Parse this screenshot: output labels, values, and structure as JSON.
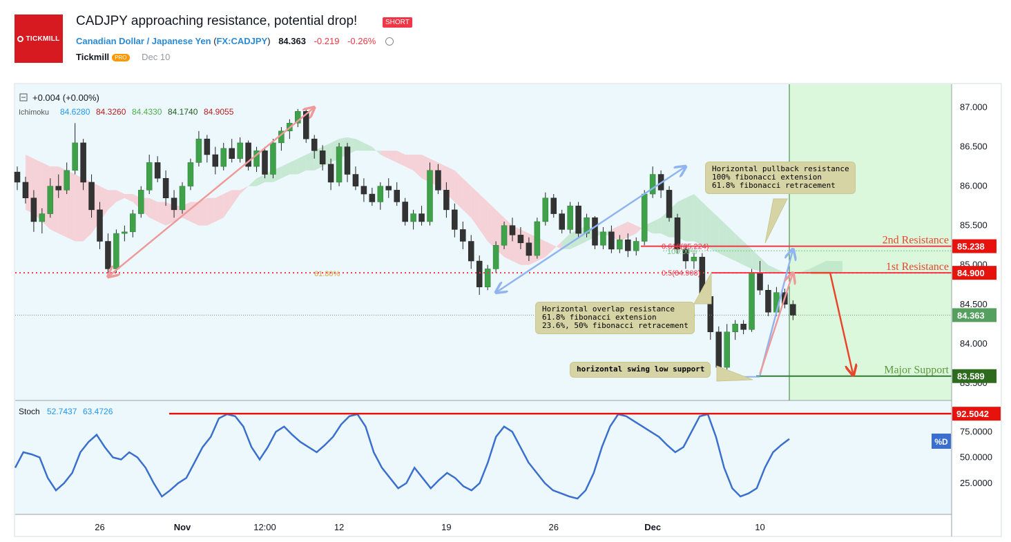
{
  "header": {
    "title": "CADJPY approaching resistance, potential drop!",
    "badge": "SHORT",
    "symbol_name": "Canadian Dollar / Japanese Yen",
    "symbol_code": "FX:CADJPY",
    "symbol_open": "(",
    "symbol_close": ")",
    "price": "84.363",
    "change": "-0.219",
    "change_pct": "-0.26%",
    "author": "Tickmill",
    "author_badge": "PRO",
    "date": "Dec 10",
    "logo_text": "TICKMILL"
  },
  "legend": {
    "collapse_icon": "minus-square-icon",
    "change_text": "+0.004 (+0.00%)",
    "ichimoku_label": "Ichimoku",
    "ichimoku_values": [
      {
        "value": "84.6280",
        "color": "#2196f3"
      },
      {
        "value": "84.3260",
        "color": "#b71c1c"
      },
      {
        "value": "84.4330",
        "color": "#4caf50"
      },
      {
        "value": "84.1740",
        "color": "#1b5e20"
      },
      {
        "value": "84.9055",
        "color": "#b71c1c"
      }
    ],
    "stoch_label": "Stoch",
    "stoch_values": [
      {
        "value": "52.7437",
        "color": "#2196f3"
      },
      {
        "value": "63.4726",
        "color": "#2196f3"
      }
    ]
  },
  "chart_data": [
    {
      "type": "candlestick",
      "title": "",
      "ylim": [
        83.35,
        87.18
      ],
      "y_ticks": [
        {
          "v": 83.5,
          "label": "83.500"
        },
        {
          "v": 84.0,
          "label": "84.000"
        },
        {
          "v": 84.5,
          "label": "84.500"
        },
        {
          "v": 85.0,
          "label": "85.000"
        },
        {
          "v": 85.5,
          "label": "85.500"
        },
        {
          "v": 86.0,
          "label": "86.000"
        },
        {
          "v": 86.5,
          "label": "86.500"
        },
        {
          "v": 87.0,
          "label": "87.000"
        }
      ],
      "x_ticks": [
        {
          "index": 10,
          "label": "26",
          "bold": false
        },
        {
          "index": 20,
          "label": "Nov",
          "bold": true
        },
        {
          "index": 30,
          "label": "12:00",
          "bold": false
        },
        {
          "index": 39,
          "label": "12",
          "bold": false
        },
        {
          "index": 52,
          "label": "19",
          "bold": false
        },
        {
          "index": 65,
          "label": "26",
          "bold": false
        },
        {
          "index": 77,
          "label": "Dec",
          "bold": true
        },
        {
          "index": 90,
          "label": "10",
          "bold": false
        }
      ],
      "ohlc": [
        [
          86.18,
          86.25,
          85.95,
          86.05
        ],
        [
          86.05,
          86.12,
          85.78,
          85.85
        ],
        [
          85.85,
          85.95,
          85.42,
          85.55
        ],
        [
          85.55,
          85.72,
          85.4,
          85.65
        ],
        [
          85.65,
          86.1,
          85.6,
          86.0
        ],
        [
          86.0,
          86.15,
          85.85,
          85.95
        ],
        [
          85.95,
          86.3,
          85.9,
          86.2
        ],
        [
          86.2,
          86.8,
          86.15,
          86.55
        ],
        [
          86.55,
          86.6,
          85.95,
          86.05
        ],
        [
          86.05,
          86.15,
          85.6,
          85.7
        ],
        [
          85.7,
          85.8,
          85.2,
          85.3
        ],
        [
          85.3,
          85.4,
          84.85,
          84.95
        ],
        [
          84.95,
          85.45,
          84.9,
          85.4
        ],
        [
          85.4,
          85.5,
          85.3,
          85.42
        ],
        [
          85.42,
          85.7,
          85.35,
          85.65
        ],
        [
          85.65,
          86.0,
          85.6,
          85.95
        ],
        [
          85.95,
          86.4,
          85.9,
          86.3
        ],
        [
          86.3,
          86.38,
          86.05,
          86.1
        ],
        [
          86.1,
          86.2,
          85.75,
          85.85
        ],
        [
          85.85,
          85.95,
          85.6,
          85.7
        ],
        [
          85.7,
          86.05,
          85.65,
          86.0
        ],
        [
          86.0,
          86.35,
          85.95,
          86.3
        ],
        [
          86.3,
          86.7,
          86.25,
          86.6
        ],
        [
          86.6,
          86.65,
          86.3,
          86.4
        ],
        [
          86.4,
          86.5,
          86.15,
          86.25
        ],
        [
          86.25,
          86.55,
          86.2,
          86.48
        ],
        [
          86.48,
          86.6,
          86.3,
          86.35
        ],
        [
          86.35,
          86.62,
          86.3,
          86.55
        ],
        [
          86.55,
          86.58,
          86.2,
          86.25
        ],
        [
          86.25,
          86.5,
          86.18,
          86.45
        ],
        [
          86.45,
          86.5,
          86.1,
          86.15
        ],
        [
          86.15,
          86.6,
          86.1,
          86.55
        ],
        [
          86.55,
          86.75,
          86.45,
          86.7
        ],
        [
          86.7,
          86.85,
          86.6,
          86.8
        ],
        [
          86.8,
          86.98,
          86.75,
          86.95
        ],
        [
          86.95,
          86.98,
          86.55,
          86.6
        ],
        [
          86.6,
          86.65,
          86.35,
          86.45
        ],
        [
          86.45,
          86.52,
          86.2,
          86.28
        ],
        [
          86.28,
          86.35,
          85.95,
          86.05
        ],
        [
          86.05,
          86.55,
          86.0,
          86.5
        ],
        [
          86.5,
          86.55,
          86.05,
          86.15
        ],
        [
          86.15,
          86.25,
          85.95,
          86.0
        ],
        [
          86.0,
          86.1,
          85.8,
          85.9
        ],
        [
          85.9,
          85.98,
          85.75,
          85.8
        ],
        [
          85.8,
          86.05,
          85.7,
          86.0
        ],
        [
          86.0,
          86.1,
          85.85,
          85.95
        ],
        [
          85.95,
          86.05,
          85.75,
          85.8
        ],
        [
          85.8,
          85.85,
          85.5,
          85.55
        ],
        [
          85.55,
          85.7,
          85.45,
          85.65
        ],
        [
          85.65,
          85.75,
          85.5,
          85.55
        ],
        [
          85.55,
          86.3,
          85.5,
          86.2
        ],
        [
          86.2,
          86.28,
          85.9,
          85.95
        ],
        [
          85.95,
          86.05,
          85.6,
          85.7
        ],
        [
          85.7,
          85.78,
          85.35,
          85.45
        ],
        [
          85.45,
          85.55,
          85.2,
          85.3
        ],
        [
          85.3,
          85.38,
          84.95,
          85.05
        ],
        [
          85.05,
          85.12,
          84.62,
          84.72
        ],
        [
          84.72,
          85.0,
          84.68,
          84.95
        ],
        [
          84.95,
          85.3,
          84.9,
          85.25
        ],
        [
          85.25,
          85.55,
          85.2,
          85.5
        ],
        [
          85.5,
          85.6,
          85.3,
          85.38
        ],
        [
          85.38,
          85.48,
          85.2,
          85.28
        ],
        [
          85.28,
          85.35,
          85.05,
          85.12
        ],
        [
          85.12,
          85.6,
          85.08,
          85.55
        ],
        [
          85.55,
          85.92,
          85.5,
          85.85
        ],
        [
          85.85,
          85.9,
          85.6,
          85.65
        ],
        [
          85.65,
          85.7,
          85.4,
          85.45
        ],
        [
          85.45,
          85.8,
          85.4,
          85.75
        ],
        [
          85.75,
          85.8,
          85.35,
          85.4
        ],
        [
          85.4,
          85.65,
          85.35,
          85.6
        ],
        [
          85.6,
          85.62,
          85.2,
          85.25
        ],
        [
          85.25,
          85.48,
          85.2,
          85.42
        ],
        [
          85.42,
          85.5,
          85.15,
          85.2
        ],
        [
          85.2,
          85.38,
          85.15,
          85.32
        ],
        [
          85.32,
          85.4,
          85.1,
          85.18
        ],
        [
          85.18,
          85.35,
          85.12,
          85.3
        ],
        [
          85.3,
          85.95,
          85.25,
          85.9
        ],
        [
          85.9,
          86.25,
          85.85,
          86.15
        ],
        [
          86.15,
          86.2,
          85.85,
          85.95
        ],
        [
          85.95,
          86.0,
          85.55,
          85.6
        ],
        [
          85.6,
          85.65,
          85.15,
          85.2
        ],
        [
          85.2,
          85.25,
          84.95,
          85.05
        ],
        [
          85.05,
          85.15,
          84.95,
          85.1
        ],
        [
          85.1,
          85.15,
          84.55,
          84.6
        ],
        [
          84.6,
          84.68,
          84.05,
          84.15
        ],
        [
          84.15,
          84.22,
          83.62,
          83.7
        ],
        [
          83.7,
          84.25,
          83.65,
          84.15
        ],
        [
          84.15,
          84.3,
          84.05,
          84.25
        ],
        [
          84.25,
          84.3,
          84.12,
          84.18
        ],
        [
          84.18,
          84.95,
          84.15,
          84.9
        ],
        [
          84.9,
          85.05,
          84.62,
          84.68
        ],
        [
          84.68,
          84.75,
          84.35,
          84.4
        ],
        [
          84.4,
          84.72,
          84.35,
          84.65
        ],
        [
          84.65,
          84.7,
          84.45,
          84.5
        ],
        [
          84.5,
          84.55,
          84.3,
          84.36
        ]
      ],
      "ichimoku": {
        "cloud_a": [
          85.7,
          85.65,
          85.55,
          85.45,
          85.4,
          85.35,
          85.3,
          85.3,
          85.4,
          85.55,
          85.7,
          85.8,
          85.85,
          85.8,
          85.7,
          85.6,
          85.55,
          85.5,
          85.55,
          85.6,
          85.55,
          85.5,
          85.5,
          85.55,
          85.6,
          85.75,
          85.9,
          86.0,
          86.1,
          86.15,
          86.2,
          86.25,
          86.3,
          86.35,
          86.4,
          86.45,
          86.5,
          86.55,
          86.6,
          86.62,
          86.6,
          86.55,
          86.5,
          86.4,
          86.35,
          86.3,
          86.25,
          86.2,
          86.1,
          86.05,
          86.0,
          85.9,
          85.8,
          85.7,
          85.6,
          85.45,
          85.3,
          85.2,
          85.1,
          85.05,
          85.0,
          85.0,
          85.05,
          85.1,
          85.2,
          85.3,
          85.4,
          85.45,
          85.5,
          85.45,
          85.4,
          85.35,
          85.3,
          85.35,
          85.4,
          85.5,
          85.55,
          85.6,
          85.7,
          85.8,
          85.85,
          85.9,
          85.8,
          85.7,
          85.6,
          85.5,
          85.4,
          85.3,
          85.2,
          85.1,
          85.0,
          84.95,
          84.9,
          84.9,
          84.91,
          84.95,
          85.0,
          85.05,
          85.05,
          85.05
        ],
        "cloud_b": [
          86.4,
          86.35,
          86.3,
          86.25,
          86.25,
          86.2,
          86.15,
          86.1,
          86.05,
          86.0,
          85.95,
          85.95,
          85.9,
          85.9,
          85.85,
          85.85,
          85.8,
          85.8,
          85.75,
          85.75,
          85.8,
          85.8,
          85.85,
          85.85,
          85.9,
          85.95,
          85.95,
          86.0,
          86.0,
          86.05,
          86.05,
          86.1,
          86.15,
          86.15,
          86.2,
          86.2,
          86.25,
          86.3,
          86.35,
          86.4,
          86.45,
          86.45,
          86.45,
          86.45,
          86.45,
          86.45,
          86.4,
          86.4,
          86.4,
          86.35,
          86.3,
          86.25,
          86.2,
          86.1,
          86.0,
          85.9,
          85.8,
          85.7,
          85.6,
          85.5,
          85.45,
          85.4,
          85.35,
          85.3,
          85.25,
          85.2,
          85.2,
          85.25,
          85.3,
          85.35,
          85.4,
          85.45,
          85.5,
          85.55,
          85.5,
          85.45,
          85.4,
          85.4,
          85.35,
          85.35,
          85.3,
          85.3,
          85.25,
          85.2,
          85.15,
          85.1,
          85.05,
          85.0,
          84.95,
          84.92,
          84.91,
          84.91,
          84.91,
          84.91,
          84.91,
          84.91,
          84.91,
          84.91,
          84.91,
          84.91
        ],
        "shift": 9
      },
      "levels": [
        {
          "name": "2nd Resistance",
          "value": 85.238,
          "label": "85.238",
          "color": "#f23645"
        },
        {
          "name": "1st Resistance",
          "value": 84.9,
          "label": "84.900",
          "color": "#f23645"
        },
        {
          "name": "Major Support",
          "value": 83.589,
          "label": "83.589",
          "color": "#2e7d32"
        },
        {
          "name": "Last Price",
          "value": 84.363,
          "label": "84.363",
          "color": "#4caf50"
        }
      ],
      "level_texts": {
        "second_resistance": "2nd Resistance",
        "first_resistance": "1st Resistance",
        "major_support": "Major Support"
      },
      "fib_labels": {
        "retrace_618": "61.80%",
        "fib_0618": "0.618(85.224)",
        "fib_1000": "100.00%",
        "fib_05": "0.5(84.908)"
      },
      "annotations": {
        "pullback": [
          "Horizontal pullback resistance",
          "100% fibonacci extension",
          "61.8% fibonacci retracement"
        ],
        "overlap": [
          "Horizontal overlap resistance",
          "61.8% fibonacci extension",
          "23.6%, 50% fibonacci retracement"
        ],
        "swing": [
          "horizontal swing low support"
        ]
      }
    },
    {
      "type": "line",
      "title": "Stoch",
      "ylim": [
        0,
        100
      ],
      "y_ticks": [
        {
          "v": 25,
          "label": "25.0000"
        },
        {
          "v": 50,
          "label": "50.0000"
        },
        {
          "v": 75,
          "label": "75.0000"
        }
      ],
      "level": {
        "value": 92.5042,
        "label": "92.5042",
        "color": "#f23645"
      },
      "series_tag": "%D",
      "series": [
        {
          "values": [
            40,
            55,
            53,
            50,
            30,
            18,
            25,
            35,
            55,
            65,
            72,
            60,
            50,
            48,
            55,
            50,
            40,
            25,
            12,
            18,
            25,
            30,
            45,
            60,
            70,
            88,
            92,
            90,
            80,
            60,
            48,
            60,
            75,
            80,
            72,
            65,
            60,
            55,
            62,
            70,
            82,
            90,
            92,
            80,
            55,
            40,
            30,
            20,
            25,
            40,
            30,
            20,
            28,
            35,
            30,
            22,
            18,
            25,
            45,
            70,
            80,
            75,
            60,
            45,
            35,
            25,
            18,
            15,
            12,
            10,
            18,
            35,
            60,
            80,
            92,
            90,
            85,
            80,
            75,
            70,
            62,
            55,
            60,
            75,
            90,
            92,
            70,
            40,
            20,
            12,
            15,
            20,
            40,
            55,
            62,
            68
          ]
        }
      ]
    }
  ]
}
